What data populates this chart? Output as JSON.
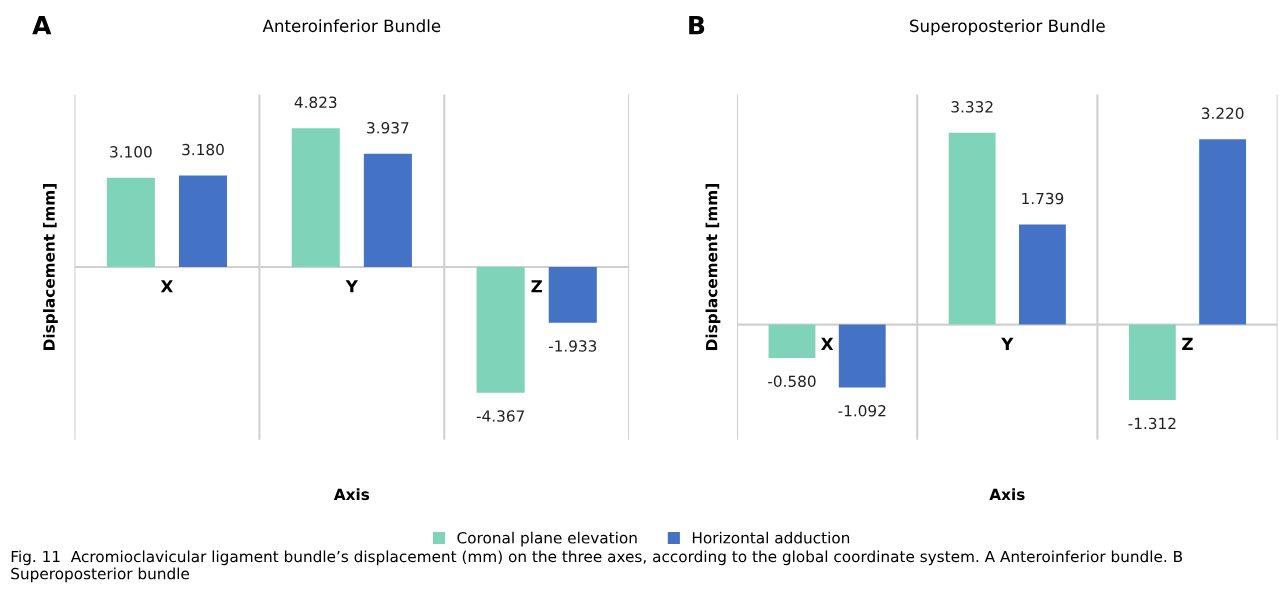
{
  "chart_data": [
    {
      "type": "bar",
      "title": "Anteroinferior Bundle",
      "xlabel": "Axis",
      "ylabel": "Displacement [mm]",
      "categories": [
        "X",
        "Y",
        "Z"
      ],
      "series": [
        {
          "name": "Coronal plane elevation",
          "color": "#7fd3b9",
          "values": [
            3.1,
            4.823,
            -4.367
          ],
          "value_labels": [
            "3.100",
            "4.823",
            "-4.367"
          ]
        },
        {
          "name": "Horizontal adduction",
          "color": "#4472c4",
          "values": [
            3.18,
            3.937,
            -1.933
          ],
          "value_labels": [
            "3.180",
            "3.937",
            "-1.933"
          ]
        }
      ],
      "ylim": [
        -6,
        6
      ],
      "grid": "x",
      "legend": "bottom",
      "annotations": [
        "A",
        "Fig. 11  Acromioclavicular ligament bundle’s displacement (mm) on the three axes, according to the global coordinate system. A Anteroinferior bundle. B Superoposterior bundle"
      ]
    },
    {
      "type": "bar",
      "title": "Superoposterior Bundle",
      "xlabel": "Axis",
      "ylabel": "Displacement [mm]",
      "categories": [
        "X",
        "Y",
        "Z"
      ],
      "series": [
        {
          "color": "#7fd3b9",
          "values": [
            -0.58,
            3.332,
            -1.312
          ],
          "value_labels": [
            "-0.580",
            "3.332",
            "-1.312"
          ]
        },
        {
          "color": "#4472c4",
          "values": [
            -1.092,
            1.739,
            3.22
          ],
          "value_labels": [
            "-1.092",
            "1.739",
            "3.220"
          ]
        }
      ],
      "ylim": [
        -2,
        4
      ],
      "grid": "x",
      "annotations": [
        "B"
      ]
    }
  ]
}
